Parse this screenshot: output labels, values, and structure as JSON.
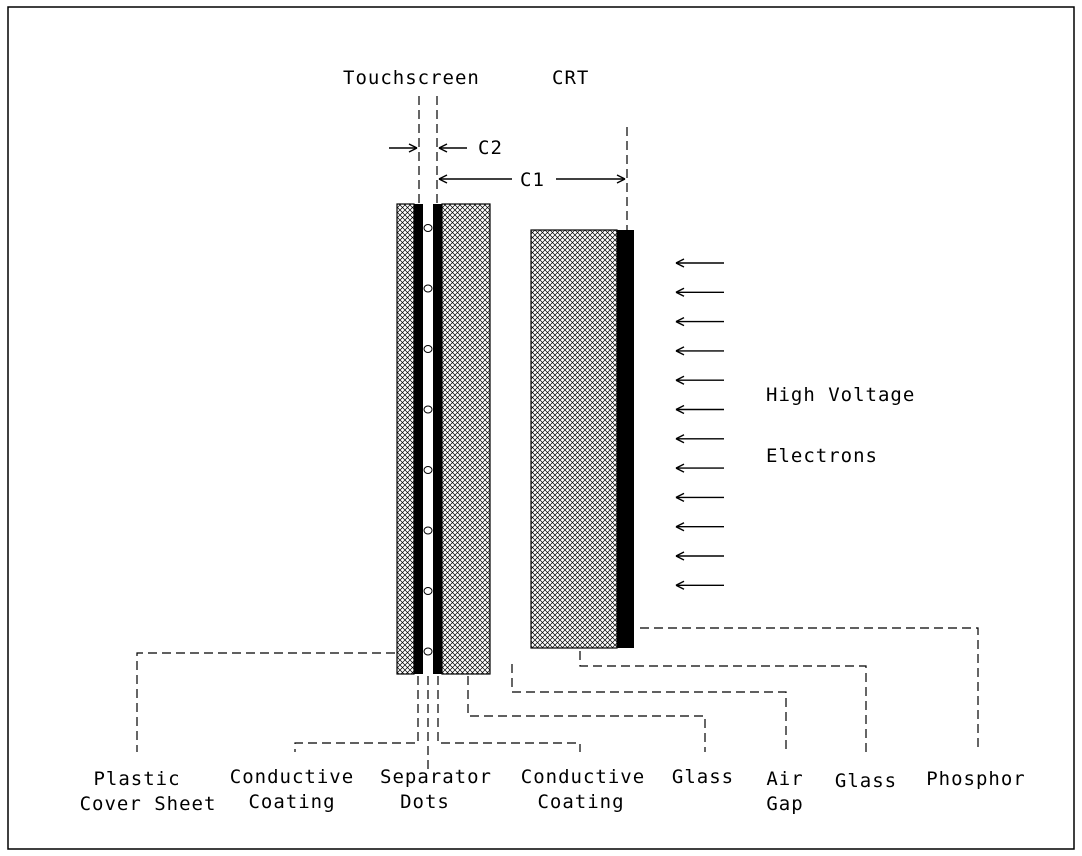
{
  "top_labels": {
    "touchscreen": "Touchscreen",
    "crt": "CRT"
  },
  "dimensions": {
    "c2": "C2",
    "c1": "C1"
  },
  "electron_label": {
    "line1": "High Voltage",
    "line2": "Electrons"
  },
  "bottom_labels": {
    "plastic_cover_sheet": [
      "Plastic",
      "Cover Sheet"
    ],
    "conductive_coating_1": [
      "Conductive",
      "Coating"
    ],
    "separator_dots": [
      "Separator",
      "Dots"
    ],
    "conductive_coating_2": [
      "Conductive",
      "Coating"
    ],
    "glass_1": [
      "Glass"
    ],
    "air_gap": [
      "Air",
      "Gap"
    ],
    "glass_2": [
      "Glass"
    ],
    "phosphor": [
      "Phosphor"
    ]
  },
  "electron_arrow_count": 12,
  "separator_dot_count": 8,
  "colors": {
    "ink": "#000000",
    "background": "#ffffff"
  }
}
